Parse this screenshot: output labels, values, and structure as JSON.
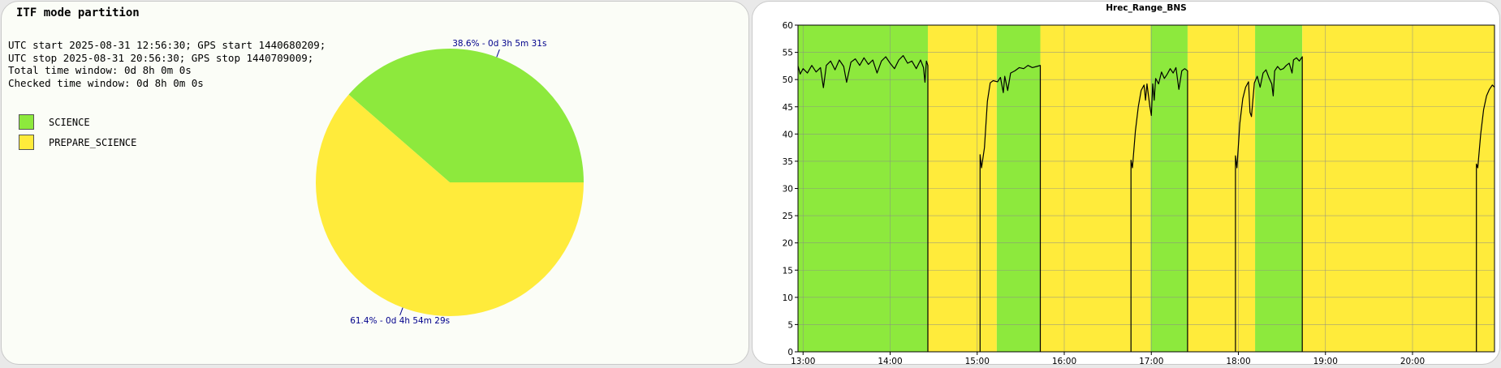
{
  "pie_panel": {
    "title": "ITF mode partition",
    "info_lines": [
      "UTC start 2025-08-31 12:56:30; GPS start 1440680209;",
      "UTC stop 2025-08-31 20:56:30; GPS stop 1440709009;",
      "Total time window: 0d 8h 0m 0s",
      "Checked time window: 0d 8h 0m 0s"
    ],
    "legend": [
      {
        "label": "SCIENCE",
        "color": "#8de93d"
      },
      {
        "label": "PREPARE_SCIENCE",
        "color": "#ffeb3b"
      }
    ]
  },
  "chart_data": [
    {
      "type": "pie",
      "slices": [
        {
          "name": "SCIENCE",
          "value": 38.6,
          "label": "38.6% - 0d 3h 5m 31s",
          "color": "#8de93d"
        },
        {
          "name": "PREPARE_SCIENCE",
          "value": 61.4,
          "label": "61.4% - 0d 4h 54m 29s",
          "color": "#ffeb3b"
        }
      ],
      "label_color": "#00008b"
    },
    {
      "type": "line",
      "title": "Hrec_Range_BNS",
      "xlim": [
        "12:56:30",
        "20:56:30"
      ],
      "ylim": [
        0,
        60
      ],
      "y_ticks": [
        "0",
        "5",
        "10",
        "15",
        "20",
        "25",
        "30",
        "35",
        "40",
        "45",
        "50",
        "55",
        "60"
      ],
      "x_ticks": [
        "13:00",
        "14:00",
        "15:00",
        "16:00",
        "17:00",
        "18:00",
        "19:00",
        "20:00"
      ],
      "grid": true,
      "line_color": "#000000",
      "background_bands": [
        {
          "start": "12:56:30",
          "end": "14:26:00",
          "state": "SCIENCE",
          "color": "#8de93d"
        },
        {
          "start": "14:26:00",
          "end": "15:13:30",
          "state": "PREPARE_SCIENCE",
          "color": "#ffeb3b"
        },
        {
          "start": "15:13:30",
          "end": "15:43:30",
          "state": "SCIENCE",
          "color": "#8de93d"
        },
        {
          "start": "15:43:30",
          "end": "16:59:30",
          "state": "PREPARE_SCIENCE",
          "color": "#ffeb3b"
        },
        {
          "start": "16:59:30",
          "end": "17:25:00",
          "state": "SCIENCE",
          "color": "#8de93d"
        },
        {
          "start": "17:25:00",
          "end": "18:11:30",
          "state": "PREPARE_SCIENCE",
          "color": "#ffeb3b"
        },
        {
          "start": "18:11:30",
          "end": "18:44:00",
          "state": "SCIENCE",
          "color": "#8de93d"
        },
        {
          "start": "18:44:00",
          "end": "20:56:30",
          "state": "PREPARE_SCIENCE",
          "color": "#ffeb3b"
        }
      ],
      "series": [
        {
          "segments": [
            {
              "points": [
                [
                  "12:56:30",
                  52.5
                ],
                [
                  "12:58:00",
                  51.0
                ],
                [
                  "13:00:00",
                  52.0
                ],
                [
                  "13:03:00",
                  51.2
                ],
                [
                  "13:06:00",
                  52.6
                ],
                [
                  "13:09:00",
                  51.4
                ],
                [
                  "13:12:00",
                  52.2
                ],
                [
                  "13:14:00",
                  48.5
                ],
                [
                  "13:16:00",
                  52.6
                ],
                [
                  "13:19:00",
                  53.4
                ],
                [
                  "13:22:00",
                  51.8
                ],
                [
                  "13:25:00",
                  53.6
                ],
                [
                  "13:28:00",
                  52.4
                ],
                [
                  "13:30:00",
                  49.5
                ],
                [
                  "13:33:00",
                  53.2
                ],
                [
                  "13:36:00",
                  53.8
                ],
                [
                  "13:39:00",
                  52.6
                ],
                [
                  "13:42:00",
                  54.0
                ],
                [
                  "13:45:00",
                  52.8
                ],
                [
                  "13:48:00",
                  53.6
                ],
                [
                  "13:51:00",
                  51.2
                ],
                [
                  "13:54:00",
                  53.4
                ],
                [
                  "13:57:00",
                  54.2
                ],
                [
                  "14:00:00",
                  53.0
                ],
                [
                  "14:03:00",
                  52.0
                ],
                [
                  "14:06:00",
                  53.6
                ],
                [
                  "14:09:00",
                  54.4
                ],
                [
                  "14:12:00",
                  53.0
                ],
                [
                  "14:15:00",
                  53.4
                ],
                [
                  "14:18:00",
                  52.0
                ],
                [
                  "14:21:00",
                  53.6
                ],
                [
                  "14:23:00",
                  52.2
                ],
                [
                  "14:24:00",
                  49.5
                ],
                [
                  "14:25:00",
                  53.4
                ],
                [
                  "14:26:00",
                  52.6
                ],
                [
                  "14:26:00",
                  0
                ]
              ]
            },
            {
              "points": [
                [
                  "15:02:00",
                  0
                ],
                [
                  "15:02:00",
                  36.2
                ],
                [
                  "15:03:00",
                  33.8
                ],
                [
                  "15:05:00",
                  37.5
                ],
                [
                  "15:07:00",
                  46.0
                ],
                [
                  "15:09:00",
                  49.4
                ],
                [
                  "15:11:00",
                  49.8
                ],
                [
                  "15:14:00",
                  49.6
                ],
                [
                  "15:16:00",
                  50.4
                ],
                [
                  "15:18:00",
                  47.6
                ],
                [
                  "15:19:00",
                  50.6
                ],
                [
                  "15:21:00",
                  48.0
                ],
                [
                  "15:23:00",
                  51.2
                ],
                [
                  "15:26:00",
                  51.6
                ],
                [
                  "15:29:00",
                  52.2
                ],
                [
                  "15:32:00",
                  52.0
                ],
                [
                  "15:35:00",
                  52.6
                ],
                [
                  "15:38:00",
                  52.2
                ],
                [
                  "15:41:00",
                  52.4
                ],
                [
                  "15:43:30",
                  52.6
                ],
                [
                  "15:43:30",
                  0
                ]
              ]
            },
            {
              "points": [
                [
                  "16:46:00",
                  0
                ],
                [
                  "16:46:00",
                  35.2
                ],
                [
                  "16:47:00",
                  33.8
                ],
                [
                  "16:49:00",
                  40.5
                ],
                [
                  "16:51:00",
                  45.0
                ],
                [
                  "16:53:00",
                  48.0
                ],
                [
                  "16:55:00",
                  49.0
                ],
                [
                  "16:56:00",
                  46.2
                ],
                [
                  "16:57:00",
                  49.2
                ],
                [
                  "16:59:00",
                  45.0
                ],
                [
                  "17:00:00",
                  43.4
                ],
                [
                  "17:01:00",
                  49.2
                ],
                [
                  "17:02:00",
                  46.2
                ],
                [
                  "17:03:00",
                  50.2
                ],
                [
                  "17:05:00",
                  49.2
                ],
                [
                  "17:07:00",
                  51.4
                ],
                [
                  "17:09:00",
                  50.2
                ],
                [
                  "17:11:00",
                  51.0
                ],
                [
                  "17:13:00",
                  52.0
                ],
                [
                  "17:15:00",
                  51.2
                ],
                [
                  "17:17:00",
                  52.2
                ],
                [
                  "17:19:00",
                  48.2
                ],
                [
                  "17:21:00",
                  51.6
                ],
                [
                  "17:23:00",
                  52.0
                ],
                [
                  "17:25:00",
                  51.6
                ],
                [
                  "17:25:00",
                  0
                ]
              ]
            },
            {
              "points": [
                [
                  "17:58:00",
                  0
                ],
                [
                  "17:58:00",
                  36.0
                ],
                [
                  "17:59:00",
                  33.8
                ],
                [
                  "18:01:00",
                  42.0
                ],
                [
                  "18:03:00",
                  46.5
                ],
                [
                  "18:05:00",
                  48.6
                ],
                [
                  "18:07:00",
                  49.6
                ],
                [
                  "18:08:00",
                  44.0
                ],
                [
                  "18:09:00",
                  43.2
                ],
                [
                  "18:11:00",
                  49.4
                ],
                [
                  "18:13:00",
                  50.6
                ],
                [
                  "18:15:00",
                  48.6
                ],
                [
                  "18:17:00",
                  51.2
                ],
                [
                  "18:19:00",
                  51.8
                ],
                [
                  "18:21:00",
                  50.4
                ],
                [
                  "18:23:00",
                  49.2
                ],
                [
                  "18:24:00",
                  47.0
                ],
                [
                  "18:25:00",
                  51.6
                ],
                [
                  "18:27:00",
                  52.4
                ],
                [
                  "18:29:00",
                  51.8
                ],
                [
                  "18:31:00",
                  52.0
                ],
                [
                  "18:33:00",
                  52.6
                ],
                [
                  "18:35:00",
                  53.0
                ],
                [
                  "18:37:00",
                  51.2
                ],
                [
                  "18:38:00",
                  53.6
                ],
                [
                  "18:40:00",
                  54.0
                ],
                [
                  "18:42:00",
                  53.4
                ],
                [
                  "18:44:00",
                  54.2
                ],
                [
                  "18:44:00",
                  0
                ]
              ]
            },
            {
              "points": [
                [
                  "20:44:00",
                  0
                ],
                [
                  "20:44:00",
                  34.5
                ],
                [
                  "20:45:00",
                  33.8
                ],
                [
                  "20:47:00",
                  40.0
                ],
                [
                  "20:49:00",
                  44.5
                ],
                [
                  "20:51:00",
                  47.0
                ],
                [
                  "20:53:00",
                  48.2
                ],
                [
                  "20:55:00",
                  49.0
                ],
                [
                  "20:56:30",
                  48.6
                ]
              ]
            }
          ]
        }
      ]
    }
  ]
}
